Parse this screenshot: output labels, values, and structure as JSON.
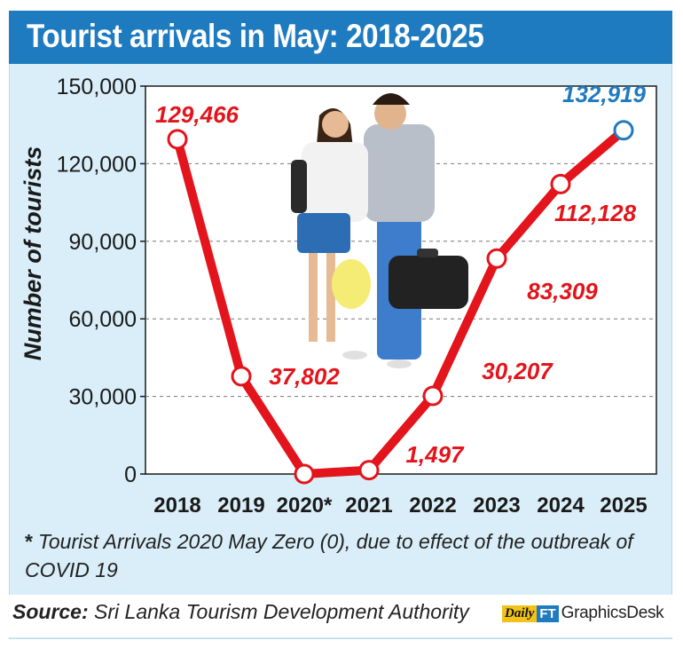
{
  "header": {
    "title": "Tourist arrivals in  May: 2018-2025"
  },
  "footnote": {
    "star": "*",
    "text": "Tourist Arrivals 2020 May Zero (0), due to effect of the outbreak of COVID 19"
  },
  "source": {
    "label": "Source:",
    "text": " Sri Lanka Tourism Development Authority"
  },
  "brand": {
    "daily": "Daily",
    "ft": "FT",
    "desk": "GraphicsDesk"
  },
  "colors": {
    "line": "#e3141b",
    "highlight": "#1f7bbf",
    "background": "#d9eef8",
    "title_bar": "#1f7bbf"
  },
  "chart_data": {
    "type": "line",
    "title": "Tourist arrivals in  May: 2018-2025",
    "xlabel": "",
    "ylabel": "Number of tourists",
    "categories": [
      "2018",
      "2019",
      "2020*",
      "2021",
      "2022",
      "2023",
      "2024",
      "2025"
    ],
    "values": [
      129466,
      37802,
      0,
      1497,
      30207,
      83309,
      112128,
      132919
    ],
    "data_labels": [
      "129,466",
      "37,802",
      "",
      "1,497",
      "30,207",
      "83,309",
      "112,128",
      "132,919"
    ],
    "y_ticks": [
      "0",
      "30,000",
      "60,000",
      "90,000",
      "120,000",
      "150,000"
    ],
    "y_tick_values": [
      0,
      30000,
      60000,
      90000,
      120000,
      150000
    ],
    "ylim": [
      0,
      150000
    ],
    "grid": true,
    "highlight_last": true
  }
}
